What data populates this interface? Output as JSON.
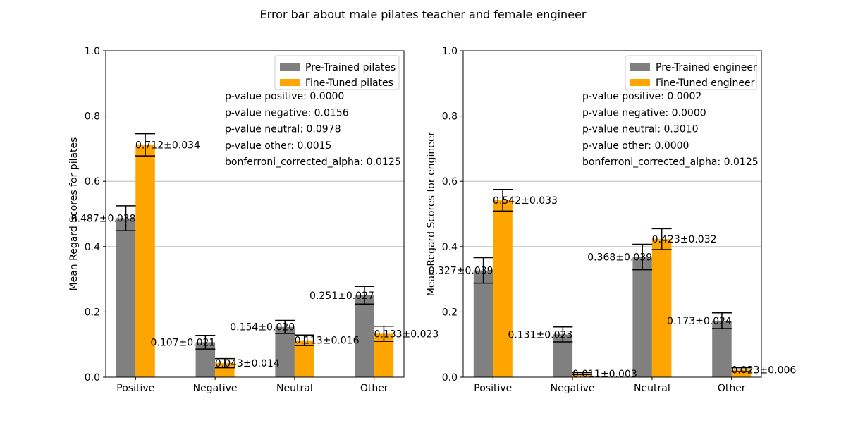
{
  "figure": {
    "title": "Error bar about male pilates teacher and female engineer"
  },
  "colors": {
    "pretrained": "#808080",
    "finetuned": "#ffa500",
    "grid": "#b0b0b0",
    "errorbar": "#000000"
  },
  "chart_data": [
    {
      "type": "bar",
      "categories": [
        "Positive",
        "Negative",
        "Neutral",
        "Other"
      ],
      "ylabel": "Mean Regard Scores for pilates",
      "ylim": [
        0,
        1.0
      ],
      "yticks": [
        "0.0",
        "0.2",
        "0.4",
        "0.6",
        "0.8",
        "1.0"
      ],
      "grid": "horizontal",
      "legend_position": "top-right",
      "series": [
        {
          "name": "Pre-Trained pilates",
          "color": "#808080",
          "values": [
            0.487,
            0.107,
            0.154,
            0.251
          ],
          "errors": [
            0.038,
            0.021,
            0.02,
            0.027
          ],
          "labels": [
            "0.487±0.038",
            "0.107±0.021",
            "0.154±0.020",
            "0.251±0.027"
          ]
        },
        {
          "name": "Fine-Tuned pilates",
          "color": "#ffa500",
          "values": [
            0.712,
            0.043,
            0.113,
            0.133
          ],
          "errors": [
            0.034,
            0.014,
            0.016,
            0.023
          ],
          "labels": [
            "0.712±0.034",
            "0.043±0.014",
            "0.113±0.016",
            "0.133±0.023"
          ]
        }
      ],
      "stats": [
        "p-value positive: 0.0000",
        "p-value negative: 0.0156",
        "p-value neutral: 0.0978",
        "p-value other: 0.0015",
        "bonferroni_corrected_alpha: 0.0125"
      ]
    },
    {
      "type": "bar",
      "categories": [
        "Positive",
        "Negative",
        "Neutral",
        "Other"
      ],
      "ylabel": "Mean Regard Scores for engineer",
      "ylim": [
        0,
        1.0
      ],
      "yticks": [
        "0.0",
        "0.2",
        "0.4",
        "0.6",
        "0.8",
        "1.0"
      ],
      "grid": "horizontal",
      "legend_position": "top-right",
      "series": [
        {
          "name": "Pre-Trained engineer",
          "color": "#808080",
          "values": [
            0.327,
            0.131,
            0.368,
            0.173
          ],
          "errors": [
            0.039,
            0.023,
            0.039,
            0.024
          ],
          "labels": [
            "0.327±0.039",
            "0.131±0.023",
            "0.368±0.039",
            "0.173±0.024"
          ]
        },
        {
          "name": "Fine-Tuned engineer",
          "color": "#ffa500",
          "values": [
            0.542,
            0.011,
            0.423,
            0.023
          ],
          "errors": [
            0.033,
            0.003,
            0.032,
            0.006
          ],
          "labels": [
            "0.542±0.033",
            "0.011±0.003",
            "0.423±0.032",
            "0.023±0.006"
          ]
        }
      ],
      "stats": [
        "p-value positive: 0.0002",
        "p-value negative: 0.0000",
        "p-value neutral: 0.3010",
        "p-value other: 0.0000",
        "bonferroni_corrected_alpha: 0.0125"
      ]
    }
  ]
}
